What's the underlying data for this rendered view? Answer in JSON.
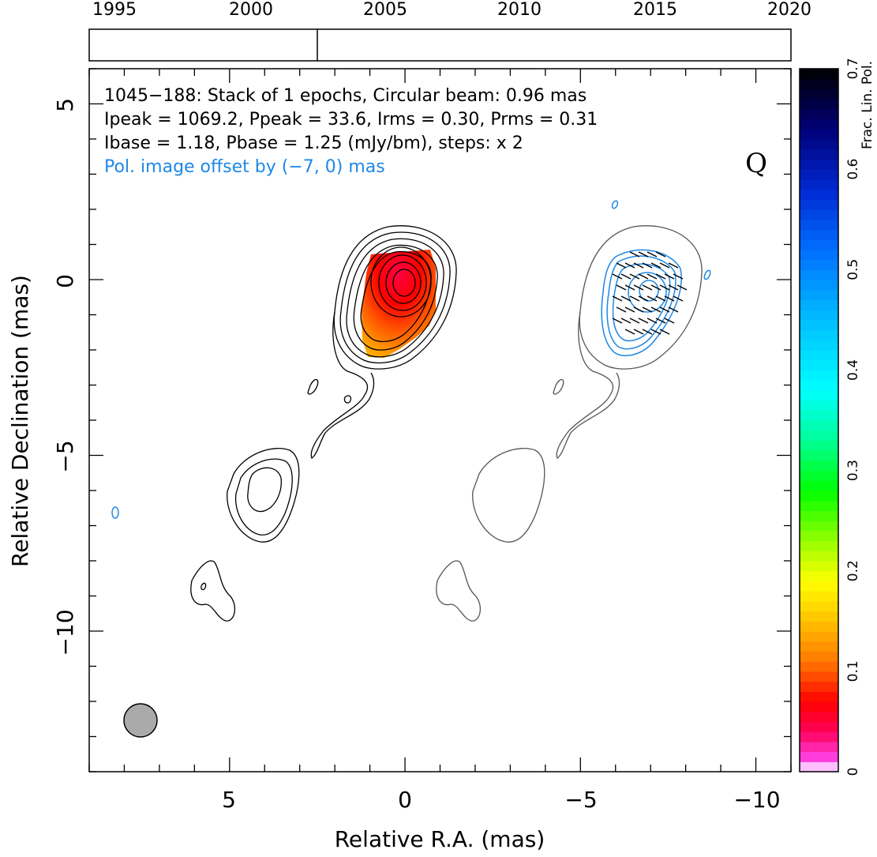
{
  "timeline": {
    "years": [
      "1995",
      "2000",
      "2005",
      "2010",
      "2015",
      "2020"
    ],
    "epoch_marker_year": 2002.5
  },
  "header": {
    "line1": "1045−188: Stack of 1 epochs, Circular beam: 0.96 mas",
    "line2": "Ipeak = 1069.2, Ppeak = 33.6, Irms = 0.30, Prms = 0.31",
    "line3": "Ibase = 1.18, Pbase = 1.25 (mJy/bm), steps: x 2",
    "line4": "Pol. image offset by (−7, 0) mas",
    "quality_flag": "Q"
  },
  "chart_data": {
    "type": "contour",
    "xlabel": "Relative R.A. (mas)",
    "ylabel": "Relative Declination (mas)",
    "xlim": [
      9,
      -11
    ],
    "ylim": [
      -14,
      6
    ],
    "x_ticks": [
      "5",
      "0",
      "−5",
      "−10"
    ],
    "y_ticks": [
      "5",
      "0",
      "−5",
      "−10"
    ],
    "colorbar": {
      "label": "Frac. Lin. Pol.",
      "range": [
        0,
        0.7
      ],
      "ticks": [
        "0",
        "0.1",
        "0.2",
        "0.3",
        "0.4",
        "0.5",
        "0.6",
        "0.7"
      ]
    },
    "beam_diameter_mas": 0.96,
    "pol_offset_mas": [
      -7,
      0
    ]
  },
  "colors": {
    "total_intensity": "#000000",
    "pol_contours": "#1e88e5",
    "shifted_contours": "#555555",
    "beam_fill": "#aaaaaa"
  }
}
